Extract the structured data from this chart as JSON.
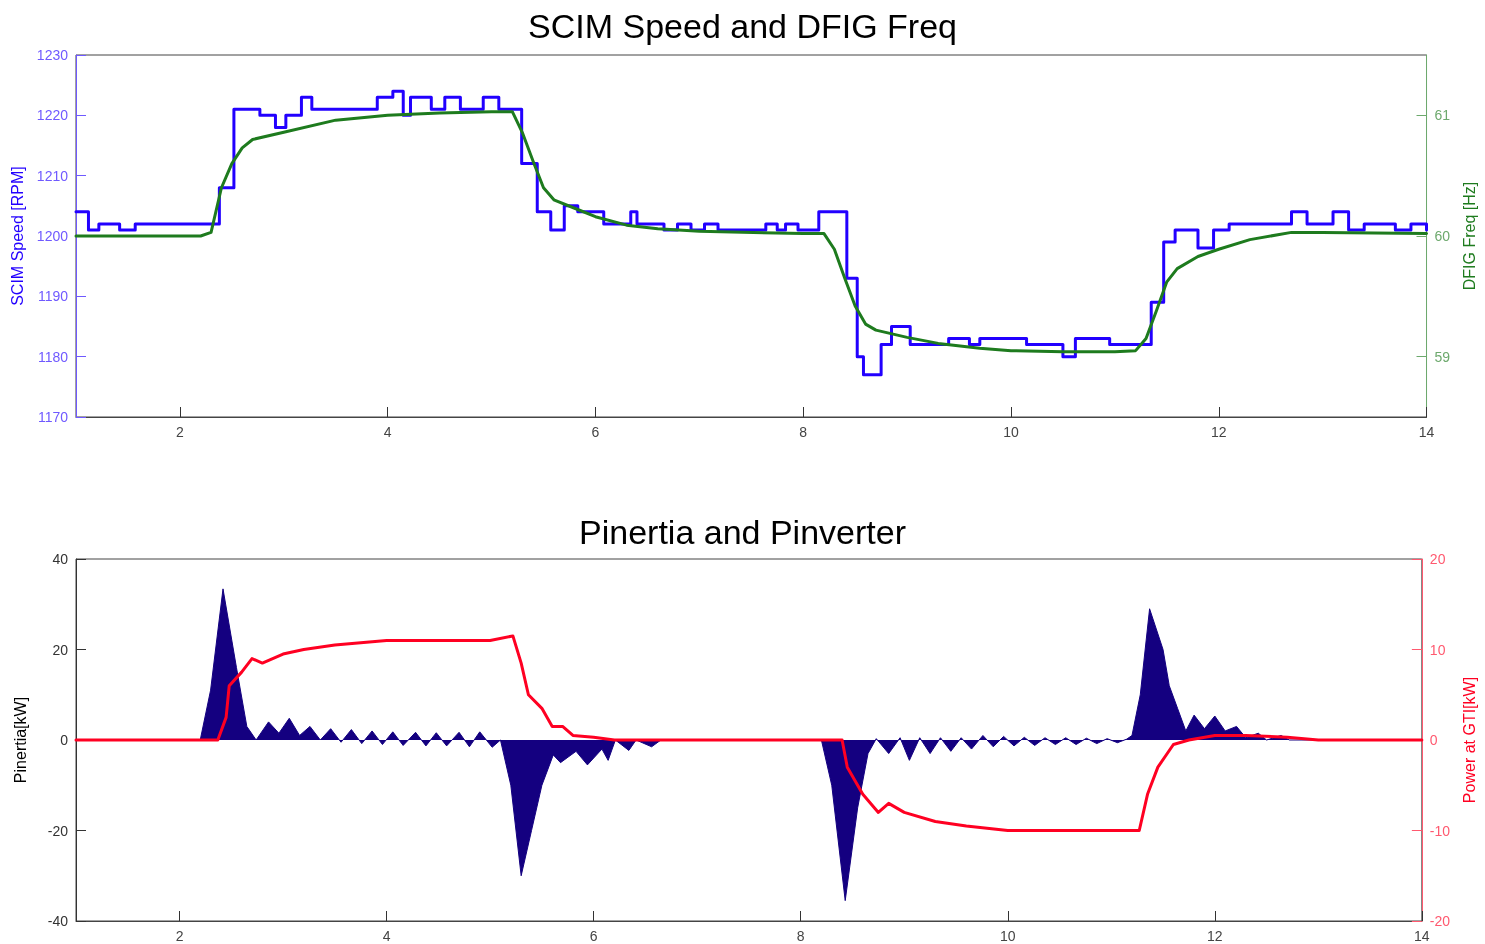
{
  "chart_data": [
    {
      "type": "line",
      "title": "SCIM Speed and DFIG Freq",
      "ylabel": "SCIM Speed [RPM]",
      "y2label": "DFIG Freq [Hz]",
      "xlim": [
        1,
        14
      ],
      "xticks": [
        2,
        4,
        6,
        8,
        10,
        12,
        14
      ],
      "ylim": [
        1170,
        1230
      ],
      "yticks": [
        1170,
        1180,
        1190,
        1200,
        1210,
        1220,
        1230
      ],
      "y2lim": [
        58.5,
        61.5
      ],
      "y2ticks": [
        59,
        60,
        61
      ],
      "grid": false,
      "series": [
        {
          "type": "step",
          "color": "#2200ff",
          "x": [
            1.0,
            1.12,
            1.22,
            1.42,
            1.57,
            2.38,
            2.52,
            2.77,
            2.92,
            3.02,
            3.17,
            3.27,
            3.9,
            4.05,
            4.15,
            4.22,
            4.42,
            4.55,
            4.7,
            4.92,
            5.07,
            5.29,
            5.44,
            5.57,
            5.7,
            5.83,
            6.08,
            6.34,
            6.4,
            6.66,
            6.79,
            6.92,
            7.05,
            7.18,
            7.64,
            7.75,
            7.83,
            7.95,
            8.15,
            8.42,
            8.52,
            8.58,
            8.75,
            8.85,
            9.03,
            9.4,
            9.6,
            9.7,
            10.15,
            10.5,
            10.62,
            10.95,
            11.35,
            11.47,
            11.58,
            11.8,
            11.95,
            12.1,
            12.7,
            12.85,
            13.1,
            13.25,
            13.4,
            13.7,
            13.85,
            14.0
          ],
          "values": [
            1204,
            1201,
            1202,
            1201,
            1202,
            1208,
            1221,
            1220,
            1218,
            1220,
            1223,
            1221,
            1223,
            1224,
            1220,
            1223,
            1221,
            1223,
            1221,
            1223,
            1221,
            1212,
            1204,
            1201,
            1205,
            1204,
            1202,
            1204,
            1202,
            1201,
            1202,
            1201,
            1202,
            1201,
            1202,
            1201,
            1202,
            1201,
            1204,
            1193,
            1180,
            1177,
            1182,
            1185,
            1182,
            1183,
            1182,
            1183,
            1182,
            1180,
            1183,
            1182,
            1189,
            1199,
            1201,
            1198,
            1201,
            1202,
            1204,
            1202,
            1204,
            1201,
            1202,
            1201,
            1202,
            1201
          ]
        },
        {
          "axis": "y2",
          "color": "#1e7b1e",
          "x": [
            1.0,
            2.2,
            2.3,
            2.4,
            2.5,
            2.6,
            2.7,
            3.0,
            3.5,
            4.0,
            4.5,
            5.0,
            5.2,
            5.3,
            5.4,
            5.5,
            5.6,
            5.8,
            6.0,
            6.3,
            6.6,
            7.0,
            8.0,
            8.2,
            8.3,
            8.4,
            8.5,
            8.6,
            8.7,
            9.0,
            9.3,
            9.7,
            10.0,
            10.5,
            11.0,
            11.2,
            11.3,
            11.4,
            11.5,
            11.6,
            11.8,
            12.0,
            12.3,
            12.7,
            13.0,
            14.0
          ],
          "values": [
            60.0,
            60.0,
            60.03,
            60.4,
            60.6,
            60.73,
            60.8,
            60.86,
            60.96,
            61.0,
            61.02,
            61.03,
            61.03,
            60.85,
            60.62,
            60.4,
            60.3,
            60.23,
            60.16,
            60.09,
            60.06,
            60.04,
            60.02,
            60.02,
            59.89,
            59.65,
            59.42,
            59.27,
            59.22,
            59.16,
            59.11,
            59.07,
            59.05,
            59.04,
            59.04,
            59.05,
            59.15,
            59.38,
            59.62,
            59.73,
            59.83,
            59.89,
            59.97,
            60.03,
            60.03,
            60.02
          ]
        }
      ]
    },
    {
      "type": "area",
      "title": "Pinertia and Pinverter",
      "ylabel": "Pinertia[kW]",
      "y2label": "Power at GTI[kW]",
      "xlim": [
        1,
        14
      ],
      "xticks": [
        2,
        4,
        6,
        8,
        10,
        12,
        14
      ],
      "ylim": [
        -40,
        40
      ],
      "yticks": [
        -40,
        -20,
        0,
        20,
        40
      ],
      "y2lim": [
        -20,
        20
      ],
      "y2ticks": [
        -20,
        -10,
        0,
        10,
        20
      ],
      "grid": false,
      "series": [
        {
          "color": "#140080",
          "x": [
            1.0,
            2.2,
            2.3,
            2.42,
            2.55,
            2.65,
            2.74,
            2.86,
            2.96,
            3.06,
            3.16,
            3.26,
            3.36,
            3.46,
            3.56,
            3.66,
            3.76,
            3.86,
            3.96,
            4.06,
            4.16,
            4.28,
            4.38,
            4.48,
            4.58,
            4.7,
            4.8,
            4.9,
            5.02,
            5.1,
            5.2,
            5.3,
            5.4,
            5.5,
            5.61,
            5.68,
            5.83,
            5.94,
            6.08,
            6.14,
            6.21,
            6.34,
            6.41,
            6.56,
            6.65,
            8.2,
            8.3,
            8.43,
            8.55,
            8.65,
            8.73,
            8.85,
            8.96,
            9.05,
            9.15,
            9.25,
            9.35,
            9.45,
            9.55,
            9.65,
            9.76,
            9.86,
            9.96,
            10.06,
            10.16,
            10.26,
            10.36,
            10.46,
            10.56,
            10.66,
            10.76,
            10.86,
            10.96,
            11.06,
            11.15,
            11.2,
            11.28,
            11.37,
            11.5,
            11.56,
            11.64,
            11.72,
            11.8,
            11.9,
            12.0,
            12.1,
            12.21,
            12.3,
            12.42,
            12.5,
            12.64,
            12.72,
            14.0
          ],
          "values": [
            0,
            0,
            11,
            33.4,
            16,
            3,
            0,
            4,
            1.5,
            4.8,
            1,
            3,
            0,
            2.5,
            -0.5,
            2.3,
            -0.8,
            2,
            -1,
            1.8,
            -1.2,
            1.7,
            -1.3,
            1.6,
            -1.3,
            1.7,
            -1.5,
            1.8,
            -1.6,
            0,
            -10,
            -30,
            -20,
            -10,
            -3.3,
            -5,
            -2.5,
            -5.5,
            -2,
            -4.5,
            0,
            -2.3,
            0,
            -1.5,
            0,
            0,
            -10,
            -35.5,
            -15,
            -3,
            0.3,
            -3,
            0.5,
            -4.5,
            0.5,
            -3,
            0.5,
            -2.5,
            0.5,
            -2,
            1,
            -1.5,
            0.8,
            -1.3,
            0.6,
            -1.2,
            0.5,
            -1,
            0.5,
            -1,
            0.4,
            -0.8,
            0.3,
            -0.6,
            0.2,
            1,
            10,
            29,
            20,
            12,
            7,
            2,
            5.5,
            2.5,
            5.3,
            2,
            3,
            0.5,
            1.5,
            0,
            1,
            0,
            0
          ]
        },
        {
          "type": "line",
          "axis": "y2",
          "color": "#ff0022",
          "x": [
            1.0,
            2.37,
            2.45,
            2.48,
            2.6,
            2.7,
            2.8,
            3.0,
            3.2,
            3.5,
            4.0,
            4.5,
            5.0,
            5.22,
            5.3,
            5.37,
            5.5,
            5.6,
            5.7,
            5.8,
            6.0,
            6.2,
            8.4,
            8.45,
            8.6,
            8.75,
            8.85,
            9.0,
            9.3,
            9.6,
            10.0,
            10.5,
            11.0,
            11.27,
            11.35,
            11.45,
            11.6,
            11.75,
            12.0,
            12.3,
            12.7,
            13.0,
            14.0
          ],
          "values": [
            0,
            0,
            2.5,
            6,
            7.5,
            9,
            8.5,
            9.5,
            10,
            10.5,
            11,
            11,
            11,
            11.5,
            8.5,
            5,
            3.5,
            1.5,
            1.5,
            0.5,
            0.3,
            0,
            0,
            -3,
            -6,
            -8,
            -7,
            -8,
            -9,
            -9.5,
            -10,
            -10,
            -10,
            -10,
            -6,
            -3,
            -0.5,
            0,
            0.5,
            0.5,
            0.3,
            0,
            0
          ]
        }
      ]
    }
  ]
}
